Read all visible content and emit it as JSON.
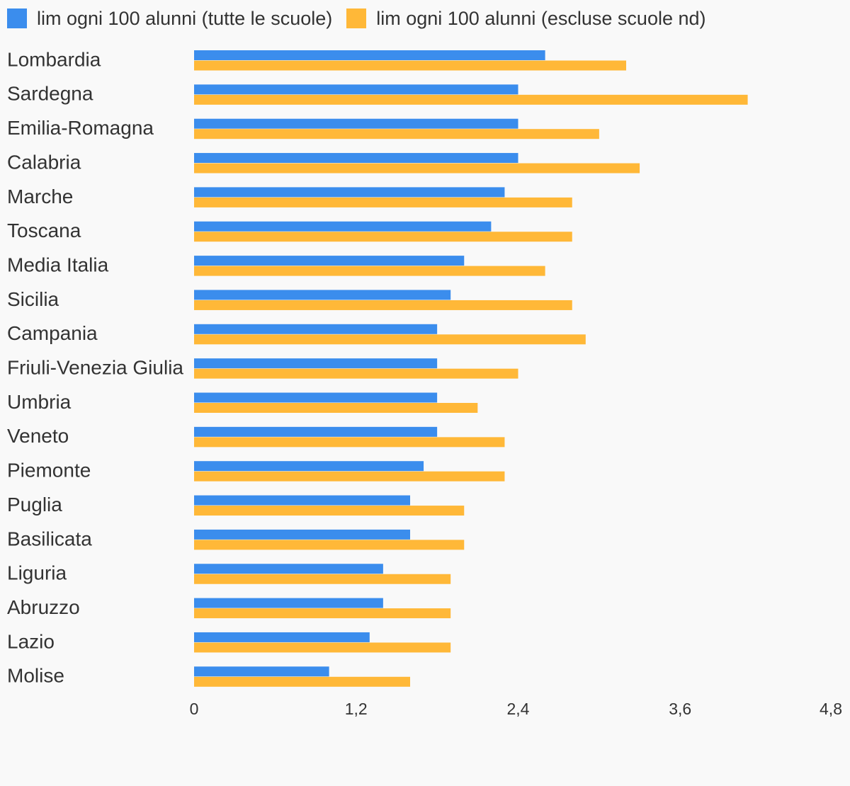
{
  "legend": {
    "items": [
      {
        "label": "lim ogni 100 alunni (tutte le scuole)",
        "color": "#3b8ded"
      },
      {
        "label": "lim ogni 100 alunni (escluse scuole nd)",
        "color": "#ffb838"
      }
    ]
  },
  "chart_data": {
    "type": "bar",
    "orientation": "horizontal",
    "categories": [
      "Lombardia",
      "Sardegna",
      "Emilia-Romagna",
      "Calabria",
      "Marche",
      "Toscana",
      "Media Italia",
      "Sicilia",
      "Campania",
      "Friuli-Venezia Giulia",
      "Umbria",
      "Veneto",
      "Piemonte",
      "Puglia",
      "Basilicata",
      "Liguria",
      "Abruzzo",
      "Lazio",
      "Molise"
    ],
    "series": [
      {
        "name": "lim ogni 100 alunni (tutte le scuole)",
        "color": "#3b8ded",
        "values": [
          2.6,
          2.4,
          2.4,
          2.4,
          2.3,
          2.2,
          2.0,
          1.9,
          1.8,
          1.8,
          1.8,
          1.8,
          1.7,
          1.6,
          1.6,
          1.4,
          1.4,
          1.3,
          1.0
        ]
      },
      {
        "name": "lim ogni 100 alunni (escluse scuole nd)",
        "color": "#ffb838",
        "values": [
          3.2,
          4.1,
          3.0,
          3.3,
          2.8,
          2.8,
          2.6,
          2.8,
          2.9,
          2.4,
          2.1,
          2.3,
          2.3,
          2.0,
          2.0,
          1.9,
          1.9,
          1.9,
          1.6
        ]
      }
    ],
    "x_ticks": [
      "0",
      "1,2",
      "2,4",
      "3,6",
      "4,8"
    ],
    "xlim": [
      0,
      4.8
    ],
    "grid": false,
    "legend_position": "top-left"
  }
}
